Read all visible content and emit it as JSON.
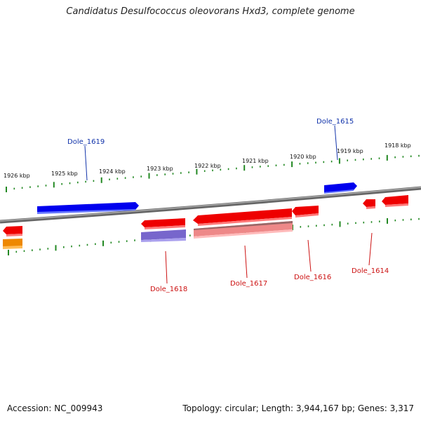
{
  "title": "Candidatus Desulfococcus oleovorans Hxd3, complete genome",
  "footer": {
    "accession": "Accession: NC_009943",
    "summary": "Topology: circular; Length: 3,944,167 bp; Genes: 3,317"
  },
  "scale_labels": [
    "1926 kbp",
    "1925 kbp",
    "1924 kbp",
    "1923 kbp",
    "1922 kbp",
    "1921 kbp",
    "1920 kbp",
    "1919 kbp",
    "1918 kbp"
  ],
  "gene_labels": [
    "Dole_1619",
    "Dole_1615",
    "Dole_1618",
    "Dole_1617",
    "Dole_1616",
    "Dole_1614"
  ],
  "colors": {
    "forward_gene": "#0000ee",
    "reverse_gene": "#ee0000",
    "reverse_feature_light": "#ee8888",
    "feature_purple": "#7766cc",
    "feature_orange": "#ee8800",
    "backbone": "#808080",
    "ticks": "#228822",
    "forward_label": "#1133aa",
    "reverse_label": "#cc1111"
  }
}
